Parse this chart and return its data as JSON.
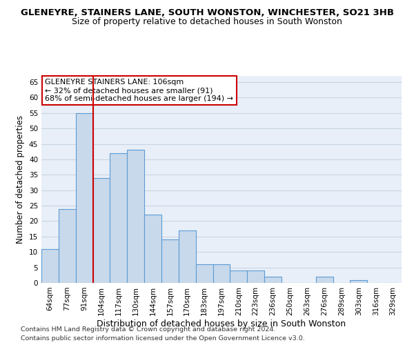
{
  "title": "GLENEYRE, STAINERS LANE, SOUTH WONSTON, WINCHESTER, SO21 3HB",
  "subtitle": "Size of property relative to detached houses in South Wonston",
  "xlabel": "Distribution of detached houses by size in South Wonston",
  "ylabel": "Number of detached properties",
  "categories": [
    "64sqm",
    "77sqm",
    "91sqm",
    "104sqm",
    "117sqm",
    "130sqm",
    "144sqm",
    "157sqm",
    "170sqm",
    "183sqm",
    "197sqm",
    "210sqm",
    "223sqm",
    "236sqm",
    "250sqm",
    "263sqm",
    "276sqm",
    "289sqm",
    "303sqm",
    "316sqm",
    "329sqm"
  ],
  "values": [
    11,
    24,
    55,
    34,
    42,
    43,
    22,
    14,
    17,
    6,
    6,
    4,
    4,
    2,
    0,
    0,
    2,
    0,
    1,
    0,
    0
  ],
  "bar_color": "#c8d9eb",
  "bar_edge_color": "#5b9bd5",
  "vline_x_index": 3,
  "vline_color": "#cc0000",
  "annotation_text": "GLENEYRE STAINERS LANE: 106sqm\n← 32% of detached houses are smaller (91)\n68% of semi-detached houses are larger (194) →",
  "annotation_box_color": "white",
  "annotation_box_edge_color": "#cc0000",
  "ylim": [
    0,
    67
  ],
  "yticks": [
    0,
    5,
    10,
    15,
    20,
    25,
    30,
    35,
    40,
    45,
    50,
    55,
    60,
    65
  ],
  "grid_color": "#c8d4e4",
  "background_color": "#e8eff8",
  "footer_line1": "Contains HM Land Registry data © Crown copyright and database right 2024.",
  "footer_line2": "Contains public sector information licensed under the Open Government Licence v3.0.",
  "title_fontsize": 9.5,
  "subtitle_fontsize": 9,
  "xlabel_fontsize": 9,
  "ylabel_fontsize": 8.5,
  "tick_fontsize": 7.5,
  "annotation_fontsize": 8,
  "footer_fontsize": 6.8
}
